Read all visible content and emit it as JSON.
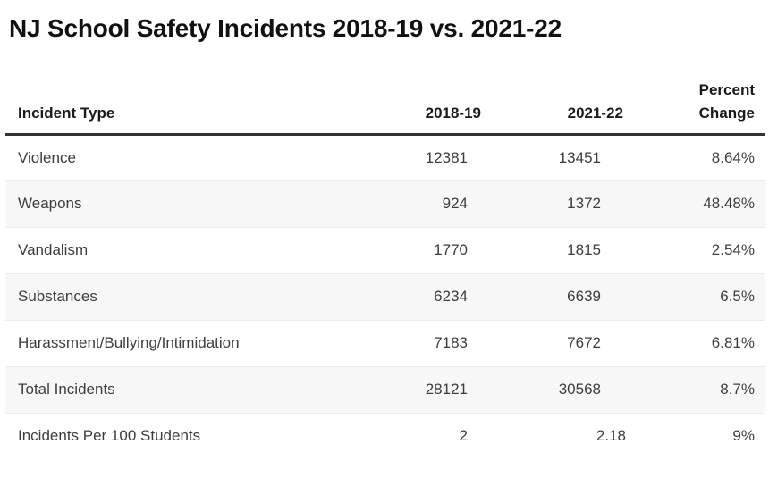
{
  "title": "NJ School Safety Incidents 2018-19 vs. 2021-22",
  "colors": {
    "title_text": "#111111",
    "body_text": "#3d3d3d",
    "header_rule": "#333333",
    "row_stripe": "#f7f7f7",
    "row_divider": "#ececec"
  },
  "table": {
    "columns": [
      {
        "label": "Incident Type"
      },
      {
        "label": "2018-19"
      },
      {
        "label": "2021-22"
      },
      {
        "label": "Percent Change"
      }
    ],
    "rows": [
      {
        "type": "Violence",
        "y2018": "12381",
        "y2021": "13451",
        "pct": "8.64%"
      },
      {
        "type": "Weapons",
        "y2018": "924",
        "y2021": "1372",
        "pct": "48.48%"
      },
      {
        "type": "Vandalism",
        "y2018": "1770",
        "y2021": "1815",
        "pct": "2.54%"
      },
      {
        "type": "Substances",
        "y2018": "6234",
        "y2021": "6639",
        "pct": "6.5%"
      },
      {
        "type": "Harassment/Bullying/Intimidation",
        "y2018": "7183",
        "y2021": "7672",
        "pct": "6.81%"
      },
      {
        "type": "Total Incidents",
        "y2018": "28121",
        "y2021": "30568",
        "pct": "8.7%"
      },
      {
        "type": "Incidents Per 100 Students",
        "y2018": "2",
        "y2021": "2.18",
        "pct": "9%"
      }
    ]
  },
  "chart_data": {
    "type": "table",
    "title": "NJ School Safety Incidents 2018-19 vs. 2021-22",
    "columns": [
      "Incident Type",
      "2018-19",
      "2021-22",
      "Percent Change"
    ],
    "rows": [
      [
        "Violence",
        12381,
        13451,
        "8.64%"
      ],
      [
        "Weapons",
        924,
        1372,
        "48.48%"
      ],
      [
        "Vandalism",
        1770,
        1815,
        "2.54%"
      ],
      [
        "Substances",
        6234,
        6639,
        "6.5%"
      ],
      [
        "Harassment/Bullying/Intimidation",
        7183,
        7672,
        "6.81%"
      ],
      [
        "Total Incidents",
        28121,
        30568,
        "8.7%"
      ],
      [
        "Incidents Per 100 Students",
        2,
        2.18,
        "9%"
      ]
    ],
    "layout": {
      "zebra_striping": true,
      "numeric_columns_right_aligned": true,
      "grid": "horizontal-rules-only"
    }
  }
}
